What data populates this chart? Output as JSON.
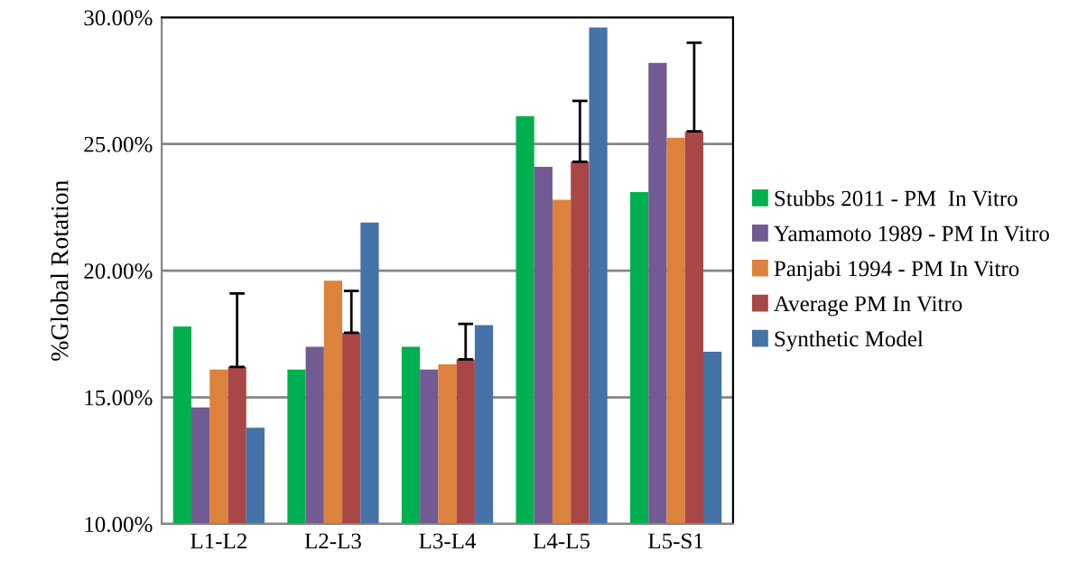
{
  "chart_data": {
    "type": "bar",
    "ylabel": "%Global Rotation",
    "categories": [
      "L1-L2",
      "L2-L3",
      "L3-L4",
      "L4-L5",
      "L5-S1"
    ],
    "series": [
      {
        "name": "Stubbs 2011 - PM  In Vitro",
        "color": "#00b050",
        "values": [
          17.8,
          16.1,
          17.0,
          26.1,
          23.1
        ]
      },
      {
        "name": "Yamamoto 1989 - PM In Vitro",
        "color": "#725a92",
        "values": [
          14.6,
          17.0,
          16.1,
          24.1,
          28.2
        ]
      },
      {
        "name": "Panjabi 1994 - PM In Vitro",
        "color": "#dc823c",
        "values": [
          16.1,
          19.6,
          16.3,
          22.8,
          25.25
        ]
      },
      {
        "name": "Average PM In Vitro",
        "color": "#a94646",
        "values": [
          16.2,
          17.55,
          16.5,
          24.3,
          25.5
        ],
        "errors": [
          [
            16.2,
            19.1
          ],
          [
            17.55,
            19.2
          ],
          [
            16.5,
            17.9
          ],
          [
            24.3,
            26.7
          ],
          [
            25.5,
            29.0
          ]
        ]
      },
      {
        "name": "Synthetic Model",
        "color": "#4572a7",
        "values": [
          13.8,
          21.9,
          17.85,
          29.6,
          16.8
        ]
      }
    ],
    "ylim": [
      10,
      30
    ],
    "yticks": [
      {
        "value": 10,
        "label": "10.00%"
      },
      {
        "value": 15,
        "label": "15.00%"
      },
      {
        "value": 20,
        "label": "20.00%"
      },
      {
        "value": 25,
        "label": "25.00%"
      },
      {
        "value": 30,
        "label": "30.00%"
      }
    ],
    "grid": "y",
    "legend": "right"
  }
}
